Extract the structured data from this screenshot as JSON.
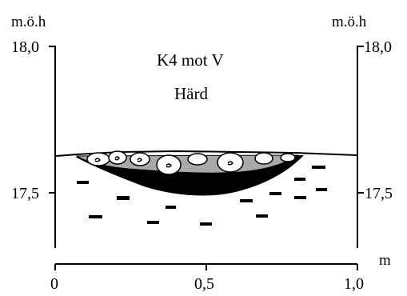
{
  "figure": {
    "title": "K4 mot V",
    "subtitle": "Härd",
    "y_unit_left": "m.ö.h",
    "y_unit_right": "m.ö.h",
    "x_unit": "m"
  },
  "axes": {
    "y_ticks": [
      {
        "value": 18.0,
        "label": "18,0"
      },
      {
        "value": 17.5,
        "label": "17,5"
      }
    ],
    "x_ticks": [
      {
        "value": 0,
        "label": "0"
      },
      {
        "value": 0.5,
        "label": "0,5"
      },
      {
        "value": 1.0,
        "label": "1,0"
      }
    ]
  },
  "legend": [],
  "colors": {
    "ink": "#000000",
    "fill_gray": "#a9a9a9",
    "stone_fill": "#ffffff"
  },
  "icons": {
    "hearth": "hearth-pit-icon",
    "stone": "fire-cracked-stone-icon",
    "charcoal": "charcoal-lens-icon"
  }
}
